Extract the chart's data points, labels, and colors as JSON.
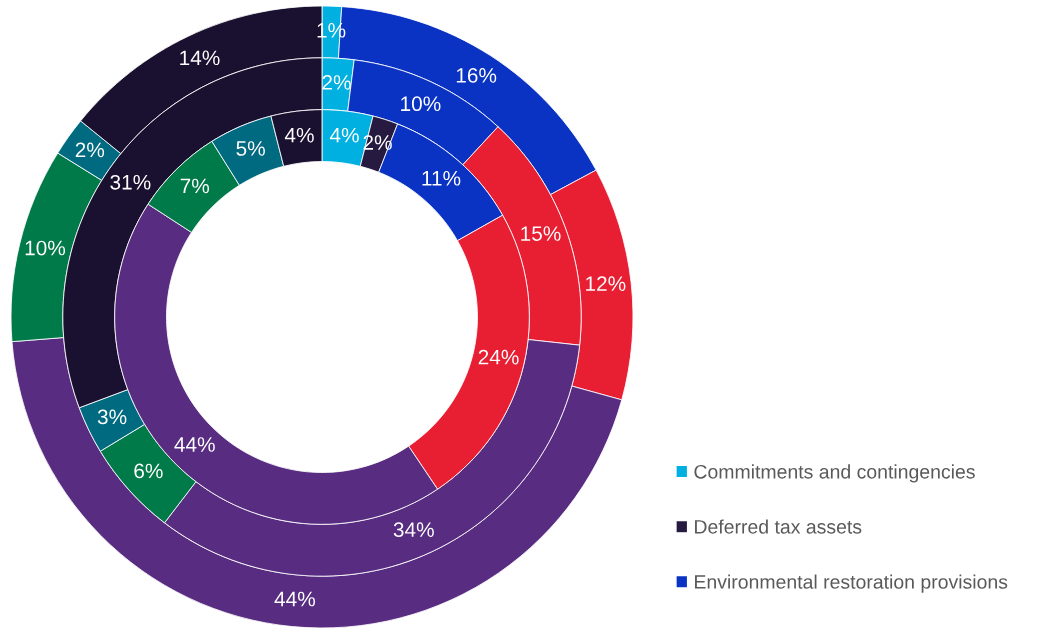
{
  "chart_data": {
    "type": "donut",
    "categories": [
      "Commitments and contingencies",
      "Deferred tax assets",
      "Environmental restoration provisions",
      null,
      null,
      null,
      null,
      null
    ],
    "colors": [
      "#00b0e0",
      "#261a40",
      "#0a33c4",
      "#e81e33",
      "#582c80",
      "#007a48",
      "#006a80",
      "#1a1030"
    ],
    "series": [
      {
        "values": [
          1,
          null,
          16,
          12,
          44,
          10,
          2,
          14
        ],
        "value_labels": [
          "1%",
          null,
          "16%",
          "12%",
          "44%",
          "10%",
          "2%",
          "14%"
        ]
      },
      {
        "values": [
          2,
          null,
          10,
          15,
          34,
          6,
          3,
          31
        ],
        "value_labels": [
          "2%",
          null,
          "10%",
          "15%",
          "34%",
          "6%",
          "3%",
          "31%"
        ]
      },
      {
        "values": [
          4,
          2,
          11,
          24,
          44,
          7,
          5,
          4
        ],
        "value_labels": [
          "4%",
          "2%",
          "11%",
          "24%",
          "44%",
          "7%",
          "5%",
          "4%"
        ]
      }
    ],
    "legend": "bottom right"
  }
}
